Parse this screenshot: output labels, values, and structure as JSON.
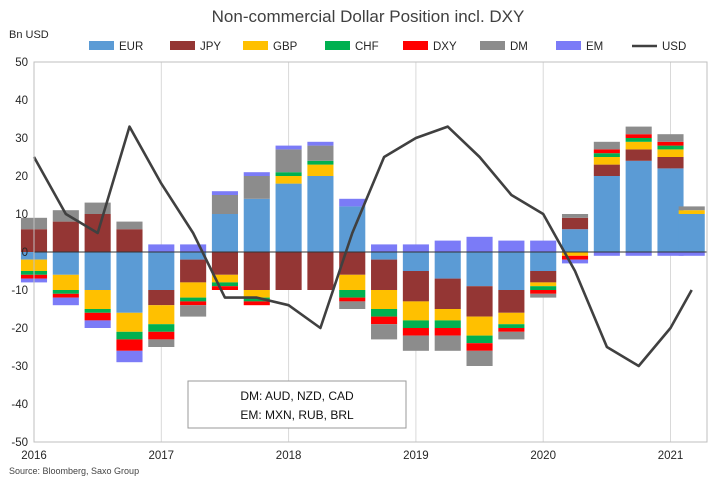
{
  "chart_data": {
    "type": "bar",
    "title": "Non-commercial Dollar Position incl. DXY",
    "ylabel": "Bn USD",
    "ylim": [
      -50,
      50
    ],
    "yticks": [
      50,
      40,
      30,
      20,
      10,
      0,
      -10,
      -20,
      -30,
      -40,
      -50
    ],
    "xticks": [
      "2016",
      "2017",
      "2018",
      "2019",
      "2020",
      "2021"
    ],
    "grid": "vertical",
    "legend_placement": "top",
    "stacked": true,
    "x": [
      "2016-01",
      "2016-04",
      "2016-07",
      "2016-10",
      "2017-01",
      "2017-04",
      "2017-07",
      "2017-10",
      "2018-01",
      "2018-04",
      "2018-07",
      "2018-10",
      "2019-01",
      "2019-04",
      "2019-07",
      "2019-10",
      "2020-01",
      "2020-04",
      "2020-07",
      "2020-10",
      "2021-01",
      "2021-03"
    ],
    "series": [
      {
        "name": "EUR",
        "color": "#5B9BD5",
        "values": [
          -2,
          -6,
          -10,
          -16,
          -10,
          -2,
          10,
          14,
          18,
          20,
          12,
          -2,
          -5,
          -7,
          -9,
          -10,
          -5,
          6,
          20,
          24,
          22,
          10
        ]
      },
      {
        "name": "JPY",
        "color": "#943634",
        "values": [
          6,
          8,
          10,
          6,
          -4,
          -6,
          -6,
          -10,
          -10,
          -10,
          -6,
          -8,
          -8,
          -8,
          -8,
          -6,
          -3,
          3,
          3,
          3,
          3,
          0
        ]
      },
      {
        "name": "GBP",
        "color": "#FFC000",
        "values": [
          -3,
          -4,
          -5,
          -5,
          -5,
          -4,
          -2,
          -2,
          2,
          3,
          -4,
          -5,
          -5,
          -3,
          -5,
          -3,
          -1,
          -1,
          2,
          2,
          2,
          1
        ]
      },
      {
        "name": "CHF",
        "color": "#00B050",
        "values": [
          -1,
          -1,
          -1,
          -2,
          -2,
          -1,
          -1,
          -1,
          1,
          1,
          -2,
          -2,
          -2,
          -2,
          -2,
          -1,
          -1,
          0,
          1,
          1,
          1,
          0
        ]
      },
      {
        "name": "DXY",
        "color": "#FF0000",
        "values": [
          -1,
          -1,
          -2,
          -3,
          -2,
          -1,
          -1,
          -1,
          0,
          0,
          -1,
          -2,
          -2,
          -2,
          -2,
          -1,
          -1,
          -1,
          1,
          1,
          1,
          0
        ]
      },
      {
        "name": "DM",
        "color": "#8C8C8C",
        "values": [
          3,
          3,
          3,
          2,
          -2,
          -3,
          5,
          6,
          6,
          4,
          -2,
          -4,
          -4,
          -4,
          -4,
          -2,
          -1,
          1,
          2,
          2,
          2,
          1
        ]
      },
      {
        "name": "EM",
        "color": "#7B7BF7",
        "values": [
          -1,
          -2,
          -2,
          -3,
          2,
          2,
          1,
          1,
          1,
          1,
          2,
          2,
          2,
          3,
          4,
          3,
          3,
          -1,
          -1,
          -1,
          -1,
          -1
        ]
      }
    ],
    "line": {
      "name": "USD",
      "color": "#404040",
      "values": [
        25,
        10,
        5,
        33,
        18,
        5,
        -12,
        -12,
        -14,
        -20,
        5,
        25,
        30,
        33,
        25,
        15,
        10,
        -5,
        -25,
        -30,
        -20,
        -10
      ]
    },
    "annotation": [
      "DM: AUD, NZD, CAD",
      "EM: MXN, RUB, BRL"
    ],
    "source": "Source: Bloomberg, Saxo Group"
  }
}
